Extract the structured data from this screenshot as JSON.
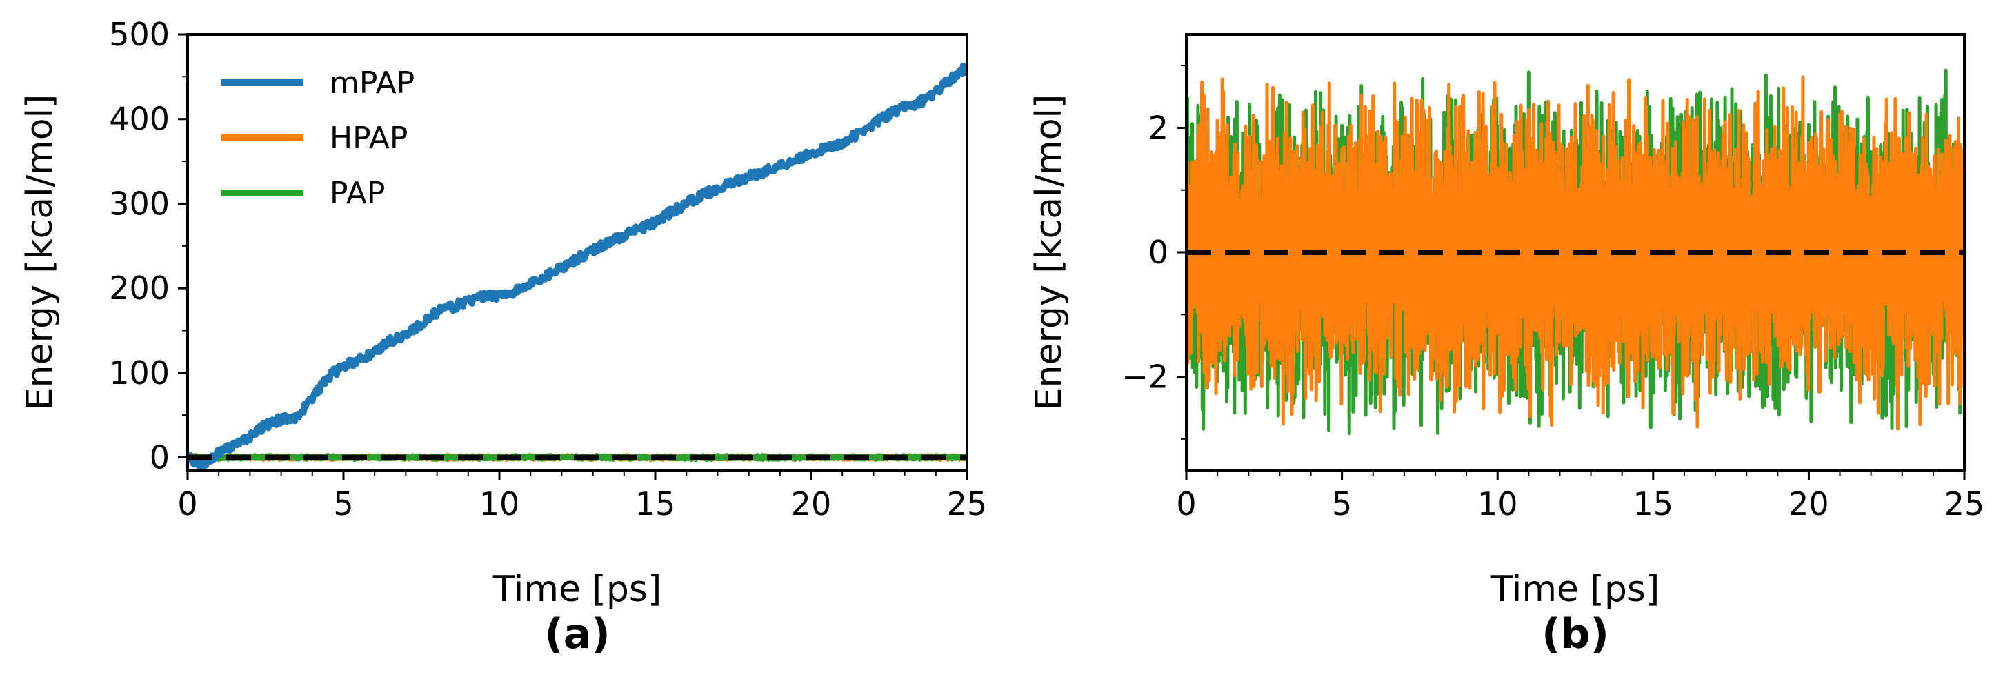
{
  "chart_data": [
    {
      "type": "line",
      "panel_label": "(a)",
      "xlabel": "Time [ps]",
      "ylabel": "Energy [kcal/mol]",
      "xlim": [
        0,
        25
      ],
      "ylim": [
        -15,
        500
      ],
      "xticks": [
        0,
        5,
        10,
        15,
        20,
        25
      ],
      "yticks": [
        0,
        100,
        200,
        300,
        400,
        500
      ],
      "grid": false,
      "legend_position": "top-left",
      "reference_line": {
        "y": 0,
        "style": "dashed",
        "color": "#000000"
      },
      "series": [
        {
          "name": "mPAP",
          "color": "#1f77b4",
          "x": [
            0,
            0.5,
            1,
            1.5,
            2,
            2.5,
            3,
            3.5,
            4,
            4.5,
            5,
            5.5,
            6,
            6.5,
            7,
            7.5,
            8,
            8.5,
            9,
            9.5,
            10,
            10.5,
            11,
            11.5,
            12,
            12.5,
            13,
            13.5,
            14,
            14.5,
            15,
            15.5,
            16,
            16.5,
            17,
            17.5,
            18,
            18.5,
            19,
            19.5,
            20,
            20.5,
            21,
            21.5,
            22,
            22.5,
            23,
            23.5,
            24,
            24.5,
            25
          ],
          "y": [
            0,
            -8,
            5,
            15,
            25,
            38,
            45,
            48,
            70,
            95,
            108,
            115,
            125,
            138,
            145,
            158,
            172,
            178,
            185,
            190,
            192,
            196,
            205,
            215,
            225,
            235,
            245,
            255,
            262,
            270,
            278,
            290,
            300,
            310,
            318,
            325,
            332,
            338,
            345,
            352,
            360,
            365,
            372,
            382,
            395,
            405,
            415,
            420,
            432,
            448,
            462
          ]
        },
        {
          "name": "HPAP",
          "color": "#ff7f0e",
          "x": [
            0,
            25
          ],
          "y": [
            0,
            0
          ],
          "noise_amplitude": 3
        },
        {
          "name": "PAP",
          "color": "#2ca02c",
          "x": [
            0,
            25
          ],
          "y": [
            0,
            0
          ],
          "noise_amplitude": 3
        }
      ]
    },
    {
      "type": "line",
      "panel_label": "(b)",
      "xlabel": "Time [ps]",
      "ylabel": "Energy [kcal/mol]",
      "xlim": [
        0,
        25
      ],
      "ylim": [
        -3.5,
        3.5
      ],
      "xticks": [
        0,
        5,
        10,
        15,
        20,
        25
      ],
      "yticks": [
        -2,
        0,
        2
      ],
      "ytick_labels": [
        "−2",
        "0",
        "2"
      ],
      "grid": false,
      "reference_line": {
        "y": 0,
        "style": "dashed",
        "color": "#000000"
      },
      "series": [
        {
          "name": "PAP",
          "color": "#2ca02c",
          "x": [
            0,
            25
          ],
          "y": [
            0,
            0
          ],
          "noise_amplitude": 3.0
        },
        {
          "name": "HPAP",
          "color": "#ff7f0e",
          "x": [
            0,
            25
          ],
          "y": [
            0,
            0
          ],
          "noise_amplitude": 2.9
        }
      ]
    }
  ]
}
